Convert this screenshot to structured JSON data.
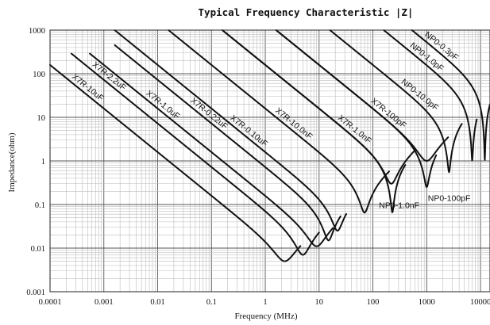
{
  "chart_data": {
    "type": "line",
    "title": "Typical  Frequency  Characteristic |Z|",
    "xlabel": "Frequency (MHz)",
    "ylabel": "Impedance(ohm)",
    "xscale": "log",
    "yscale": "log",
    "xlim": [
      0.0001,
      15000
    ],
    "ylim": [
      0.001,
      1000
    ],
    "x_tick_labels": [
      "0.0001",
      "0.001",
      "0.01",
      "0.1",
      "1",
      "10",
      "100",
      "1000",
      "10000"
    ],
    "y_tick_labels": [
      "1000",
      "100",
      "10",
      "1",
      "0.1",
      "0.01",
      "0.001"
    ],
    "grid": true,
    "series": [
      {
        "name": "X7R-10uF",
        "capacitance_uF": 10,
        "self_resonant_MHz": 2.3,
        "min_impedance_ohm": 0.005,
        "x": [
          0.0001,
          0.1,
          1,
          2.3,
          4.5
        ],
        "y": [
          159,
          0.16,
          0.017,
          0.005,
          0.08
        ]
      },
      {
        "name": "X7R-2.2uF",
        "capacitance_uF": 2.2,
        "self_resonant_MHz": 5,
        "min_impedance_ohm": 0.007,
        "x": [
          0.00025,
          0.1,
          1,
          5,
          10
        ],
        "y": [
          290,
          0.72,
          0.075,
          0.007,
          0.08
        ]
      },
      {
        "name": "X7R-1.0uF",
        "capacitance_uF": 1.0,
        "self_resonant_MHz": 9,
        "min_impedance_ohm": 0.011,
        "x": [
          0.00055,
          0.1,
          1,
          9,
          18
        ],
        "y": [
          290,
          1.6,
          0.16,
          0.011,
          0.08
        ]
      },
      {
        "name": "X7R-0.22uF",
        "capacitance_uF": 0.22,
        "self_resonant_MHz": 15,
        "min_impedance_ohm": 0.015,
        "x": [
          0.0016,
          0.1,
          1,
          15,
          25
        ],
        "y": [
          450,
          7.2,
          0.72,
          0.015,
          0.08
        ]
      },
      {
        "name": "X7R-0.10uF",
        "capacitance_uF": 0.1,
        "self_resonant_MHz": 22,
        "min_impedance_ohm": 0.025,
        "x": [
          0.0016,
          0.1,
          1,
          22,
          32
        ],
        "y": [
          1000,
          16,
          1.6,
          0.025,
          0.08
        ]
      },
      {
        "name": "X7R-10.0nF",
        "capacitance_uF": 0.01,
        "self_resonant_MHz": 70,
        "min_impedance_ohm": 0.065,
        "x": [
          0.016,
          0.1,
          1,
          70,
          200
        ],
        "y": [
          1000,
          160,
          16,
          0.065,
          0.7
        ]
      },
      {
        "name": "X7R-1.0nF",
        "capacitance_uF": 0.001,
        "self_resonant_MHz": 220,
        "min_impedance_ohm": 0.3,
        "x": [
          0.16,
          1,
          10,
          220,
          600
        ],
        "y": [
          1000,
          160,
          16,
          0.3,
          2.5
        ]
      },
      {
        "name": "X7R-100pF",
        "capacitance_uF": 0.0001,
        "self_resonant_MHz": 1000,
        "min_impedance_ohm": 1,
        "x": [
          1.6,
          10,
          100,
          1000,
          2500
        ],
        "y": [
          1000,
          160,
          16,
          1,
          12
        ]
      },
      {
        "name": "NP0-1.0nF",
        "capacitance_uF": 0.001,
        "self_resonant_MHz": 230,
        "min_impedance_ohm": 0.065,
        "x": [
          0.16,
          1,
          10,
          230,
          400
        ],
        "y": [
          1000,
          160,
          16,
          0.065,
          0.6
        ]
      },
      {
        "name": "NP0-100pF",
        "capacitance_uF": 0.0001,
        "self_resonant_MHz": 1000,
        "min_impedance_ohm": 0.25,
        "x": [
          1.6,
          10,
          100,
          1000,
          1500
        ],
        "y": [
          1000,
          160,
          16,
          0.25,
          1.2
        ]
      },
      {
        "name": "NP0-10.0pF",
        "capacitance_uF": 1e-05,
        "self_resonant_MHz": 2600,
        "min_impedance_ohm": 0.55,
        "x": [
          16,
          100,
          1000,
          2600,
          4500
        ],
        "y": [
          1000,
          160,
          16,
          0.55,
          8
        ]
      },
      {
        "name": "NP0-1.0pF",
        "capacitance_uF": 1e-06,
        "self_resonant_MHz": 7000,
        "min_impedance_ohm": 1.0,
        "x": [
          160,
          1000,
          7000,
          8500
        ],
        "y": [
          1000,
          160,
          1.0,
          8
        ]
      },
      {
        "name": "NP0-0.3pF",
        "capacitance_uF": 3e-07,
        "self_resonant_MHz": 12000,
        "min_impedance_ohm": 1.0,
        "x": [
          530,
          1000,
          12000,
          15000
        ],
        "y": [
          1000,
          530,
          1.0,
          12
        ]
      }
    ]
  }
}
